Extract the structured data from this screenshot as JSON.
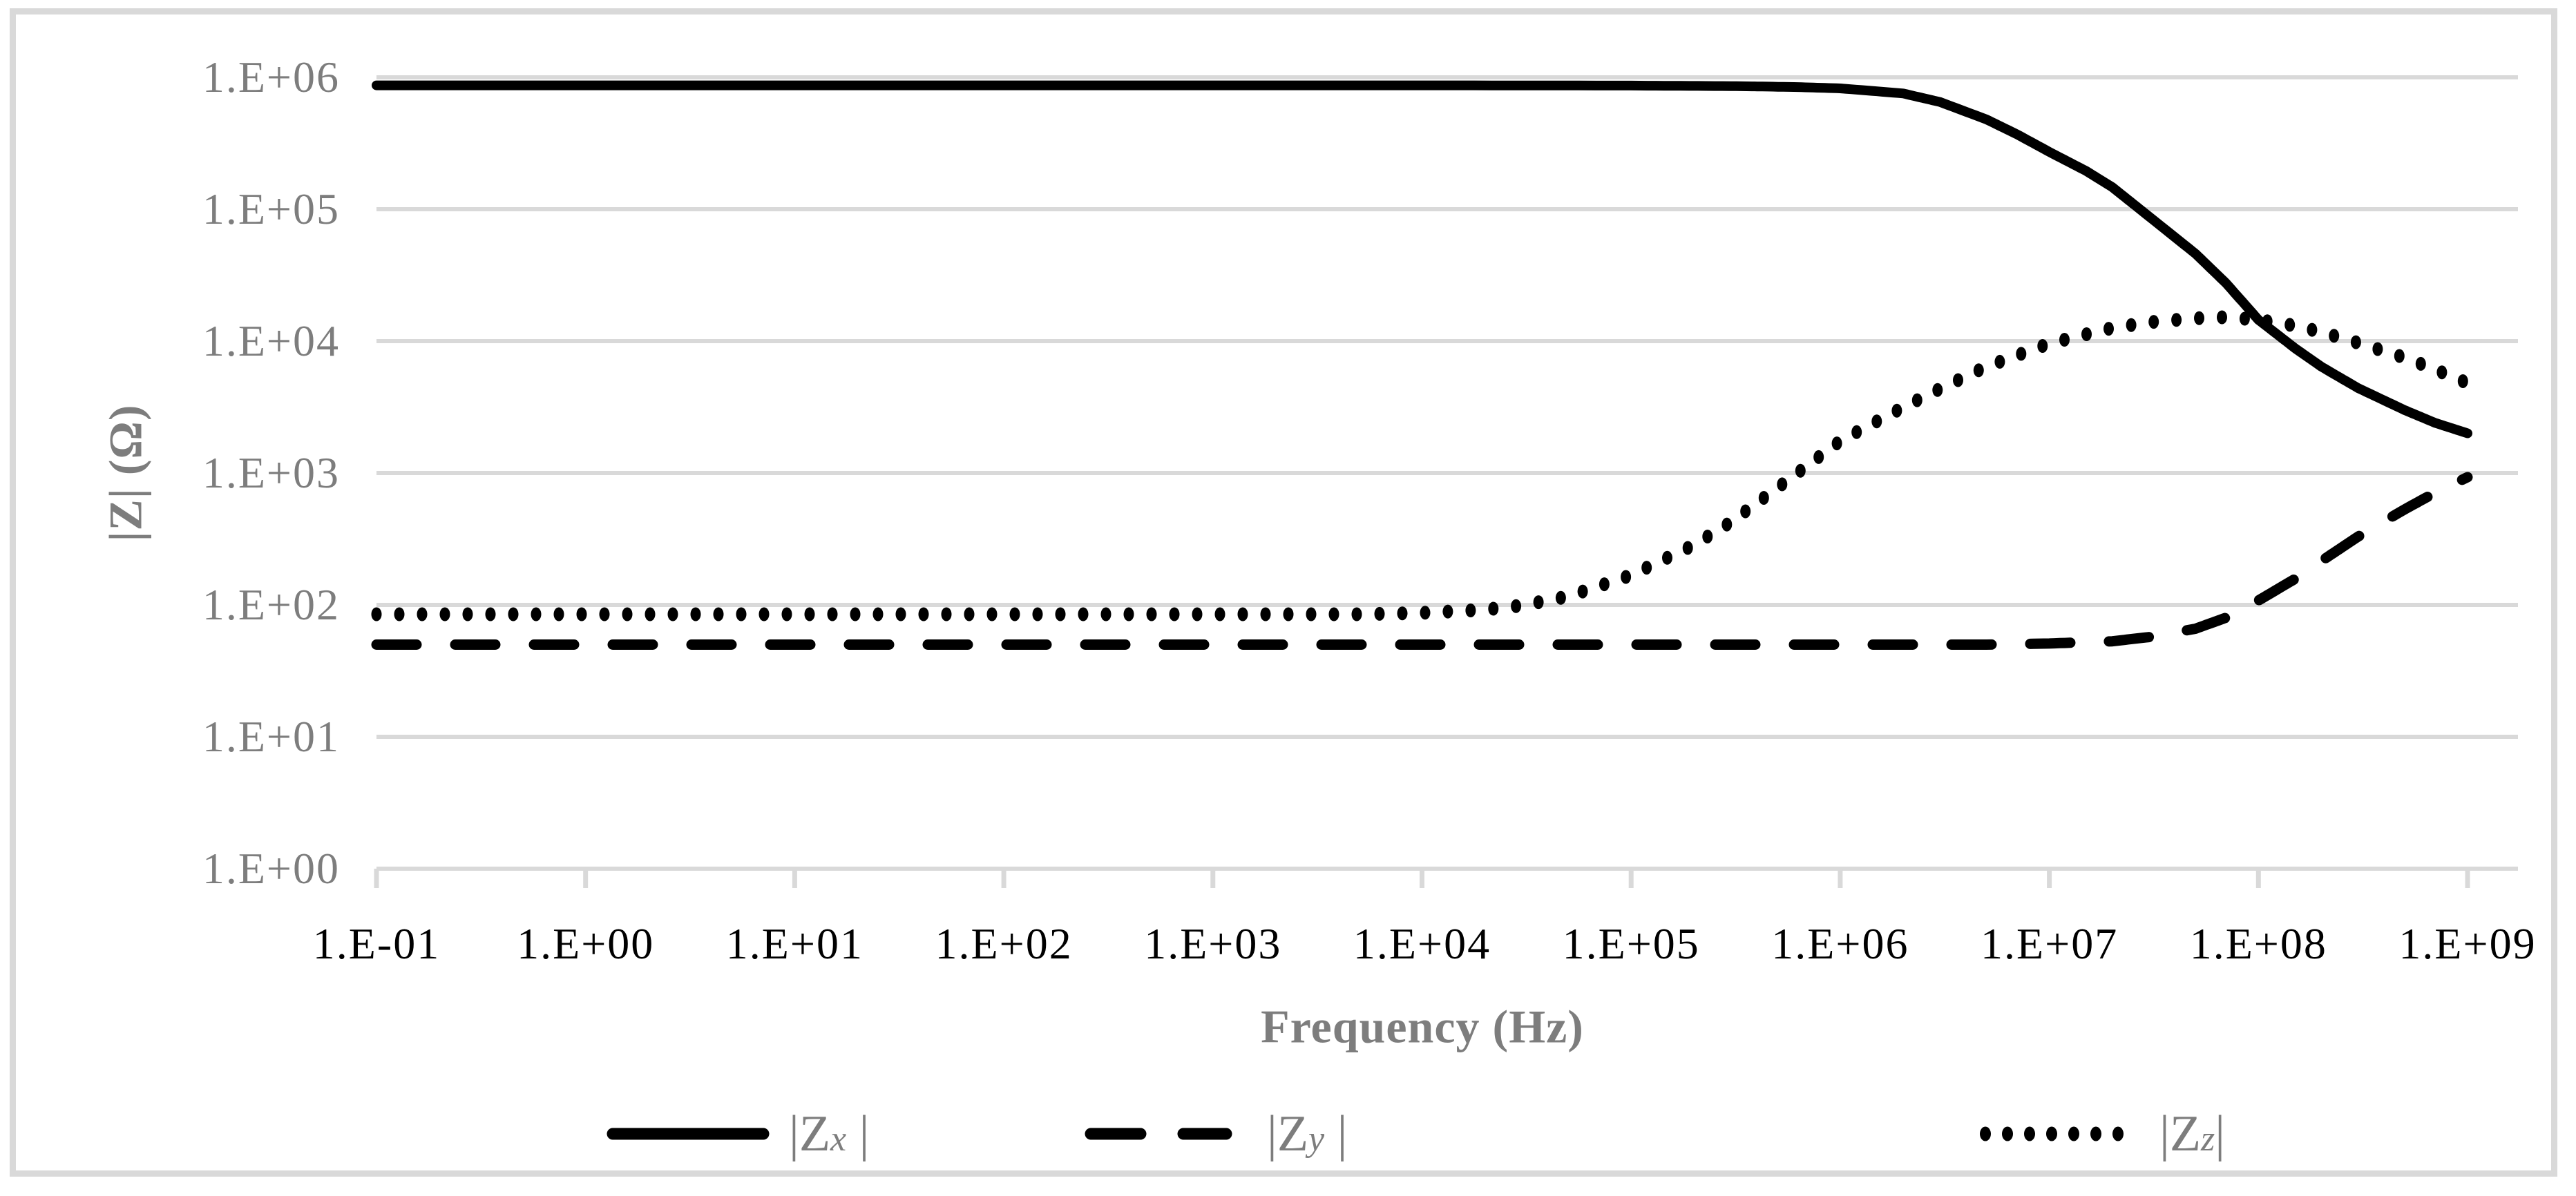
{
  "figure": {
    "background": "#ffffff",
    "frame_color": "#d9d9d9",
    "grid_color": "#d9d9d9",
    "label_gray": "#7d7d7d",
    "x_tick_color": "#000000",
    "series_color": "#000000",
    "y_axis": {
      "title": "|Z| (Ω)",
      "tick_labels": [
        "1.E+06",
        "1.E+05",
        "1.E+04",
        "1.E+03",
        "1.E+02",
        "1.E+01",
        "1.E+00"
      ]
    },
    "x_axis": {
      "title": "Frequency (Hz)",
      "tick_labels": [
        "1.E-01",
        "1.E+00",
        "1.E+01",
        "1.E+02",
        "1.E+03",
        "1.E+04",
        "1.E+05",
        "1.E+06",
        "1.E+07",
        "1.E+08",
        "1.E+09"
      ]
    },
    "legend": [
      {
        "id": "zx",
        "style": "solid",
        "prefix": "|Z",
        "sub": "x",
        "suffix": " |"
      },
      {
        "id": "zy",
        "style": "dashed",
        "prefix": "|Z",
        "sub": "y",
        "suffix": " |"
      },
      {
        "id": "zz",
        "style": "dotted",
        "prefix": "|Z",
        "sub": "z",
        "suffix": "|"
      }
    ]
  },
  "chart_data": {
    "type": "line",
    "title": "",
    "xlabel": "Frequency (Hz)",
    "ylabel": "|Z| (Ω)",
    "x_scale": "log",
    "y_scale": "log",
    "xlim": [
      0.1,
      1000000000
    ],
    "ylim": [
      1,
      1000000
    ],
    "x_tick_values": [
      0.1,
      1,
      10,
      100,
      1000,
      10000,
      100000,
      1000000,
      10000000,
      100000000,
      1000000000
    ],
    "y_tick_values": [
      1,
      10,
      100,
      1000,
      10000,
      100000,
      1000000
    ],
    "grid": "horizontal-only",
    "legend_position": "bottom",
    "series": [
      {
        "name": "|Zx |",
        "line_style": "solid",
        "color": "#000000",
        "points": [
          [
            0.1,
            870000
          ],
          [
            1,
            870000
          ],
          [
            10,
            870000
          ],
          [
            100,
            870000
          ],
          [
            1000,
            870000
          ],
          [
            10000,
            870000
          ],
          [
            100000,
            866000
          ],
          [
            300000,
            858000
          ],
          [
            600000,
            845000
          ],
          [
            1000000,
            825000
          ],
          [
            2000000,
            755000
          ],
          [
            3000000,
            650000
          ],
          [
            5000000,
            480000
          ],
          [
            7000000,
            370000
          ],
          [
            10000000,
            272000
          ],
          [
            15000000,
            195000
          ],
          [
            20000000,
            147000
          ],
          [
            30000000,
            88000
          ],
          [
            50000000,
            46000
          ],
          [
            70000000,
            27500
          ],
          [
            100000000,
            14500
          ],
          [
            150000000,
            8800
          ],
          [
            200000000,
            6400
          ],
          [
            300000000,
            4400
          ],
          [
            500000000,
            3000
          ],
          [
            700000000,
            2400
          ],
          [
            1000000000,
            2000
          ]
        ]
      },
      {
        "name": "|Zy |",
        "line_style": "dashed",
        "color": "#000000",
        "points": [
          [
            0.1,
            50
          ],
          [
            1,
            50
          ],
          [
            10,
            50
          ],
          [
            100,
            50
          ],
          [
            1000,
            50
          ],
          [
            10000,
            50
          ],
          [
            100000,
            50
          ],
          [
            1000000,
            50
          ],
          [
            5000000,
            50
          ],
          [
            10000000,
            51
          ],
          [
            20000000,
            53
          ],
          [
            30000000,
            57
          ],
          [
            50000000,
            66
          ],
          [
            70000000,
            80
          ],
          [
            100000000,
            108
          ],
          [
            150000000,
            158
          ],
          [
            200000000,
            215
          ],
          [
            300000000,
            330
          ],
          [
            500000000,
            530
          ],
          [
            700000000,
            710
          ],
          [
            1000000000,
            930
          ]
        ]
      },
      {
        "name": "|Zz|",
        "line_style": "dotted",
        "color": "#000000",
        "points": [
          [
            0.1,
            85
          ],
          [
            1,
            85
          ],
          [
            10,
            85
          ],
          [
            100,
            85
          ],
          [
            1000,
            85
          ],
          [
            5000,
            85
          ],
          [
            10000,
            87
          ],
          [
            20000,
            92
          ],
          [
            30000,
            99
          ],
          [
            50000,
            116
          ],
          [
            100000,
            168
          ],
          [
            200000,
            285
          ],
          [
            300000,
            425
          ],
          [
            500000,
            770
          ],
          [
            1000000,
            1750
          ],
          [
            2000000,
            3150
          ],
          [
            3000000,
            4350
          ],
          [
            5000000,
            6400
          ],
          [
            10000000,
            9600
          ],
          [
            20000000,
            12600
          ],
          [
            30000000,
            13900
          ],
          [
            50000000,
            14900
          ],
          [
            70000000,
            15200
          ],
          [
            100000000,
            14500
          ],
          [
            150000000,
            13100
          ],
          [
            200000000,
            11700
          ],
          [
            300000000,
            9700
          ],
          [
            500000000,
            7500
          ],
          [
            700000000,
            6100
          ],
          [
            1000000000,
            4800
          ]
        ]
      }
    ]
  }
}
